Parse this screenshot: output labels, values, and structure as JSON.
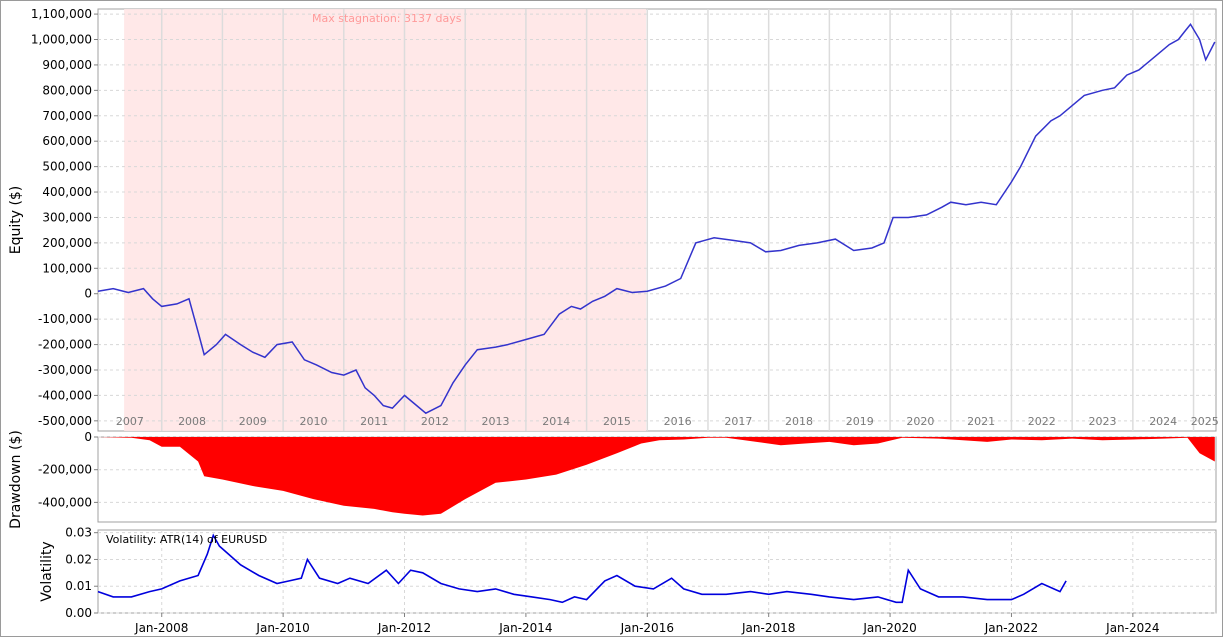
{
  "chart_data": [
    {
      "type": "line",
      "ylabel": "Equity ($)",
      "ylim": [
        -540000,
        1120000
      ],
      "yticks": [
        1100000,
        1000000,
        900000,
        800000,
        700000,
        600000,
        500000,
        400000,
        300000,
        200000,
        100000,
        0,
        -100000,
        -200000,
        -300000,
        -400000,
        -500000
      ],
      "ytick_labels": [
        "1,100,000",
        "1,000,000",
        "900,000",
        "800,000",
        "700,000",
        "600,000",
        "500,000",
        "400,000",
        "300,000",
        "200,000",
        "100,000",
        "0",
        "-100,000",
        "-200,000",
        "-300,000",
        "-400,000",
        "-500,000"
      ],
      "year_labels": [
        "2007",
        "2008",
        "2009",
        "2010",
        "2011",
        "2012",
        "2013",
        "2014",
        "2015",
        "2016",
        "2017",
        "2018",
        "2019",
        "2020",
        "2021",
        "2022",
        "2023",
        "2024",
        "2025"
      ],
      "year_boundaries": [
        2008,
        2009,
        2010,
        2011,
        2012,
        2013,
        2014,
        2015,
        2016,
        2017,
        2018,
        2019,
        2020,
        2021,
        2022,
        2023,
        2024,
        2025
      ],
      "stagnation": {
        "label": "Max stagnation: 3137 days",
        "from": 2007.38,
        "to": 2015.98
      },
      "grid": true,
      "series": [
        {
          "color": "#3333cc",
          "x": [
            2006.95,
            2007.2,
            2007.45,
            2007.7,
            2007.85,
            2008.0,
            2008.25,
            2008.45,
            2008.6,
            2008.7,
            2008.9,
            2009.05,
            2009.3,
            2009.5,
            2009.7,
            2009.9,
            2010.15,
            2010.35,
            2010.55,
            2010.8,
            2011.0,
            2011.2,
            2011.35,
            2011.5,
            2011.65,
            2011.8,
            2012.0,
            2012.15,
            2012.35,
            2012.6,
            2012.8,
            2013.0,
            2013.2,
            2013.5,
            2013.7,
            2014.0,
            2014.3,
            2014.55,
            2014.75,
            2014.9,
            2015.1,
            2015.3,
            2015.5,
            2015.75,
            2016.0,
            2016.3,
            2016.55,
            2016.8,
            2016.95,
            2017.1,
            2017.4,
            2017.7,
            2017.95,
            2018.2,
            2018.5,
            2018.8,
            2019.1,
            2019.4,
            2019.7,
            2019.9,
            2020.05,
            2020.3,
            2020.6,
            2020.85,
            2021.0,
            2021.25,
            2021.5,
            2021.75,
            2022.0,
            2022.15,
            2022.4,
            2022.65,
            2022.8,
            2023.0,
            2023.2,
            2023.5,
            2023.7,
            2023.9,
            2024.1,
            2024.4,
            2024.6,
            2024.75,
            2024.85,
            2024.95,
            2025.1,
            2025.2,
            2025.35
          ],
          "y": [
            10000,
            20000,
            5000,
            20000,
            -20000,
            -50000,
            -40000,
            -20000,
            -150000,
            -240000,
            -200000,
            -160000,
            -200000,
            -230000,
            -250000,
            -200000,
            -190000,
            -260000,
            -280000,
            -310000,
            -320000,
            -300000,
            -370000,
            -400000,
            -440000,
            -450000,
            -400000,
            -430000,
            -470000,
            -440000,
            -350000,
            -280000,
            -220000,
            -210000,
            -200000,
            -180000,
            -160000,
            -80000,
            -50000,
            -60000,
            -30000,
            -10000,
            20000,
            5000,
            10000,
            30000,
            60000,
            200000,
            210000,
            220000,
            210000,
            200000,
            165000,
            170000,
            190000,
            200000,
            215000,
            170000,
            180000,
            200000,
            300000,
            300000,
            310000,
            340000,
            360000,
            350000,
            360000,
            350000,
            440000,
            500000,
            620000,
            680000,
            700000,
            740000,
            780000,
            800000,
            810000,
            860000,
            880000,
            940000,
            980000,
            1000000,
            1030000,
            1060000,
            1000000,
            920000,
            990000
          ]
        }
      ]
    },
    {
      "type": "area",
      "ylabel": "Drawdown ($)",
      "ylim": [
        -520000,
        0
      ],
      "yticks": [
        0,
        -200000,
        -400000
      ],
      "ytick_labels": [
        "0",
        "-200,000",
        "-400,000"
      ],
      "grid": true,
      "series": [
        {
          "color": "#ff0000",
          "x": [
            2006.95,
            2007.5,
            2007.8,
            2008.0,
            2008.3,
            2008.6,
            2008.7,
            2009.0,
            2009.5,
            2010.0,
            2010.5,
            2011.0,
            2011.5,
            2011.8,
            2012.0,
            2012.3,
            2012.6,
            2013.0,
            2013.5,
            2014.0,
            2014.5,
            2015.0,
            2015.5,
            2015.9,
            2016.2,
            2016.6,
            2017.0,
            2017.3,
            2017.8,
            2018.2,
            2018.6,
            2019.0,
            2019.4,
            2019.8,
            2020.2,
            2020.8,
            2021.2,
            2021.6,
            2022.0,
            2022.5,
            2023.0,
            2023.5,
            2024.0,
            2024.5,
            2024.9,
            2025.1,
            2025.35
          ],
          "y": [
            0,
            -5000,
            -20000,
            -60000,
            -60000,
            -150000,
            -240000,
            -260000,
            -300000,
            -330000,
            -380000,
            -420000,
            -440000,
            -460000,
            -470000,
            -480000,
            -470000,
            -380000,
            -280000,
            -260000,
            -230000,
            -170000,
            -100000,
            -40000,
            -20000,
            -15000,
            -5000,
            -5000,
            -30000,
            -50000,
            -40000,
            -30000,
            -50000,
            -40000,
            -5000,
            -10000,
            -20000,
            -30000,
            -15000,
            -20000,
            -10000,
            -20000,
            -15000,
            -10000,
            -5000,
            -100000,
            -150000
          ]
        }
      ]
    },
    {
      "type": "line",
      "ylabel": "Volatility",
      "title": "Volatility: ATR(14) of EURUSD",
      "ylim": [
        0,
        0.031
      ],
      "yticks": [
        0.03,
        0.02,
        0.01,
        0.0
      ],
      "ytick_labels": [
        "0.03",
        "0.02",
        "0.01",
        "0.00"
      ],
      "xticks": [
        2008,
        2010,
        2012,
        2014,
        2016,
        2018,
        2020,
        2022,
        2024
      ],
      "xtick_labels": [
        "Jan-2008",
        "Jan-2010",
        "Jan-2012",
        "Jan-2014",
        "Jan-2016",
        "Jan-2018",
        "Jan-2020",
        "Jan-2022",
        "Jan-2024"
      ],
      "grid": true,
      "series": [
        {
          "color": "#0000dd",
          "x": [
            2006.95,
            2007.2,
            2007.5,
            2007.8,
            2008.0,
            2008.3,
            2008.6,
            2008.75,
            2008.85,
            2008.95,
            2009.1,
            2009.3,
            2009.6,
            2009.9,
            2010.1,
            2010.3,
            2010.4,
            2010.6,
            2010.9,
            2011.1,
            2011.4,
            2011.7,
            2011.9,
            2012.1,
            2012.3,
            2012.6,
            2012.9,
            2013.2,
            2013.5,
            2013.8,
            2014.1,
            2014.4,
            2014.6,
            2014.8,
            2015.0,
            2015.3,
            2015.5,
            2015.8,
            2016.1,
            2016.4,
            2016.6,
            2016.9,
            2017.3,
            2017.7,
            2018.0,
            2018.3,
            2018.7,
            2019.0,
            2019.4,
            2019.8,
            2020.1,
            2020.2,
            2020.3,
            2020.5,
            2020.8,
            2021.2,
            2021.6,
            2022.0,
            2022.2,
            2022.5,
            2022.8,
            2022.9
          ],
          "y": [
            0.008,
            0.006,
            0.006,
            0.008,
            0.009,
            0.012,
            0.014,
            0.022,
            0.029,
            0.025,
            0.022,
            0.018,
            0.014,
            0.011,
            0.012,
            0.013,
            0.02,
            0.013,
            0.011,
            0.013,
            0.011,
            0.016,
            0.011,
            0.016,
            0.015,
            0.011,
            0.009,
            0.008,
            0.009,
            0.007,
            0.006,
            0.005,
            0.004,
            0.006,
            0.005,
            0.012,
            0.014,
            0.01,
            0.009,
            0.013,
            0.009,
            0.007,
            0.007,
            0.008,
            0.007,
            0.008,
            0.007,
            0.006,
            0.005,
            0.006,
            0.004,
            0.004,
            0.016,
            0.009,
            0.006,
            0.006,
            0.005,
            0.005,
            0.007,
            0.011,
            0.008,
            0.012
          ]
        }
      ]
    }
  ]
}
